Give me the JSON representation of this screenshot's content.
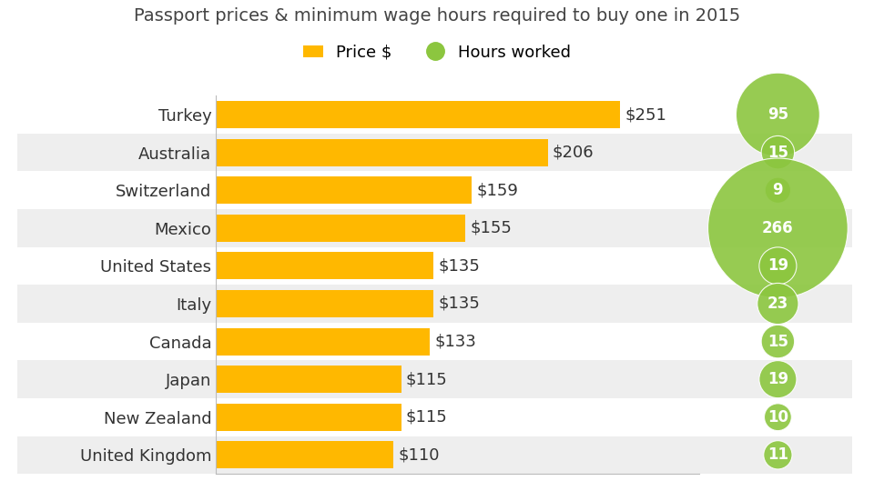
{
  "chart_data": {
    "type": "bar",
    "orientation": "horizontal",
    "title": "Passport prices & minimum wage hours required to buy one in 2015",
    "categories": [
      "Turkey",
      "Australia",
      "Switzerland",
      "Mexico",
      "United States",
      "Italy",
      "Canada",
      "Japan",
      "New Zealand",
      "United Kingdom"
    ],
    "series": [
      {
        "name": "Price $",
        "type": "bar",
        "color": "#FFB800",
        "values": [
          251,
          206,
          159,
          155,
          135,
          135,
          133,
          115,
          115,
          110
        ],
        "value_labels": [
          "$251",
          "$206",
          "$159",
          "$155",
          "$135",
          "$135",
          "$133",
          "$115",
          "$115",
          "$110"
        ]
      },
      {
        "name": "Hours worked",
        "type": "bubble",
        "color": "#8CC63F",
        "values": [
          95,
          15,
          9,
          266,
          19,
          23,
          15,
          19,
          10,
          11
        ]
      }
    ],
    "xlim": [
      0,
      300
    ],
    "xticks": [],
    "tick_labels": "y",
    "data_labels": true,
    "legend": "upper center",
    "grid": false
  }
}
